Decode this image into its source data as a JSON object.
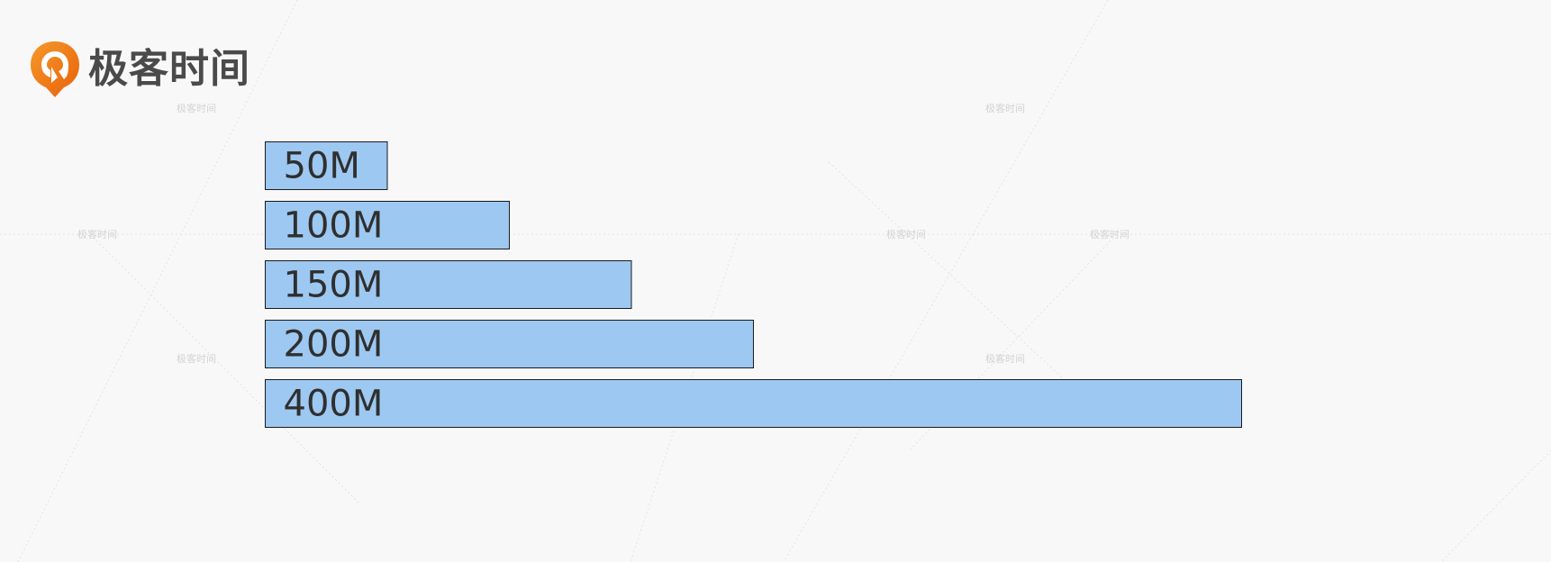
{
  "brand": {
    "logo_text": "极客时间",
    "logo_icon": "geektime-logo-icon",
    "logo_color": "#f07a12"
  },
  "watermark": {
    "text": "极客时间",
    "color": "#d8d6d8"
  },
  "chart_data": {
    "type": "bar",
    "orientation": "horizontal",
    "bar_color": "#9dc8f1",
    "bar_border_color": "#1a1a1a",
    "categories": [
      "50M",
      "100M",
      "150M",
      "200M",
      "400M"
    ],
    "values": [
      50,
      100,
      150,
      200,
      400
    ],
    "unit": "M",
    "title": "",
    "xlabel": "",
    "ylabel": "",
    "xlim": [
      0,
      400
    ],
    "grid": false,
    "legend": "none"
  }
}
